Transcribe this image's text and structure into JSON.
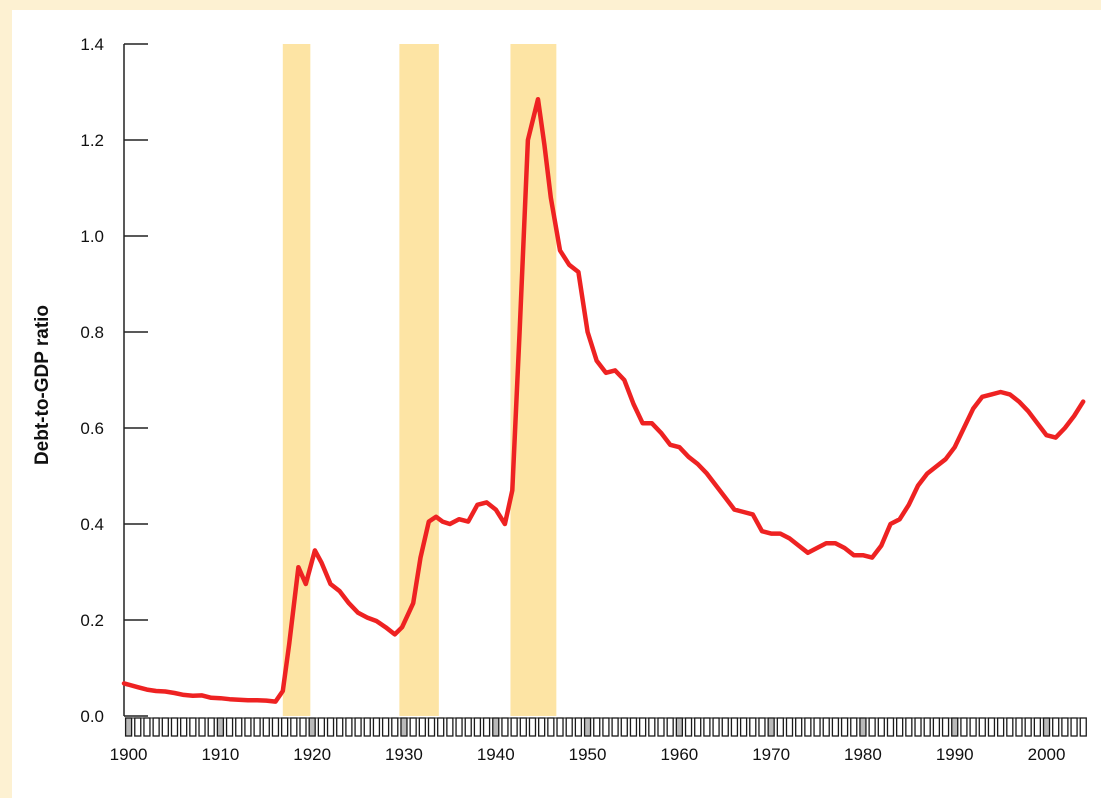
{
  "chart_data": {
    "type": "line",
    "title": "",
    "xlabel": "",
    "ylabel": "Debt-to-GDP ratio",
    "xlim": [
      1899.5,
      2004.3
    ],
    "ylim": [
      0,
      1.4
    ],
    "yticks": [
      0.0,
      0.2,
      0.4,
      0.6,
      0.8,
      1.0,
      1.2,
      1.4
    ],
    "ytick_labels": [
      "0.0",
      "0.2",
      "0.4",
      "0.6",
      "0.8",
      "1.0",
      "1.2",
      "1.4"
    ],
    "xticks": [
      1900,
      1910,
      1920,
      1930,
      1940,
      1950,
      1960,
      1970,
      1980,
      1990,
      2000
    ],
    "xtick_labels": [
      "1900",
      "1910",
      "1920",
      "1930",
      "1940",
      "1950",
      "1960",
      "1970",
      "1980",
      "1990",
      "2000"
    ],
    "line_color": "#ee2222",
    "band_color": "#fde4a4",
    "axis_color": "#222222",
    "grid": false,
    "shaded_periods": [
      {
        "start": 1916.8,
        "end": 1919.8
      },
      {
        "start": 1929.5,
        "end": 1933.8
      },
      {
        "start": 1941.6,
        "end": 1946.6
      }
    ],
    "series": [
      {
        "name": "",
        "x": [
          1899.5,
          1901,
          1902,
          1903,
          1904,
          1905,
          1906,
          1907,
          1908,
          1909,
          1910,
          1911,
          1912,
          1913,
          1914,
          1915,
          1916,
          1916.8,
          1917.5,
          1918.5,
          1919.3,
          1920.3,
          1921,
          1922,
          1923,
          1924,
          1925,
          1926,
          1927,
          1928,
          1929,
          1929.8,
          1931,
          1931.8,
          1932.7,
          1933.5,
          1934.2,
          1935,
          1936,
          1937,
          1938,
          1939,
          1940,
          1941,
          1941.8,
          1942.6,
          1943.5,
          1944.6,
          1945.3,
          1946,
          1947,
          1948,
          1949,
          1950,
          1951,
          1952,
          1953,
          1954,
          1955,
          1956,
          1957,
          1958,
          1959,
          1960,
          1961,
          1962,
          1963,
          1964,
          1965,
          1966,
          1967,
          1968,
          1969,
          1970,
          1971,
          1972,
          1973,
          1974,
          1975,
          1976,
          1977,
          1978,
          1979,
          1980,
          1981,
          1982,
          1983,
          1984,
          1985,
          1986,
          1987,
          1988,
          1989,
          1990,
          1991,
          1992,
          1993,
          1994,
          1995,
          1996,
          1997,
          1998,
          1999,
          2000,
          2001,
          2002,
          2003,
          2004
        ],
        "values": [
          0.068,
          0.06,
          0.055,
          0.052,
          0.051,
          0.048,
          0.044,
          0.042,
          0.043,
          0.038,
          0.037,
          0.035,
          0.034,
          0.033,
          0.033,
          0.032,
          0.03,
          0.052,
          0.15,
          0.31,
          0.275,
          0.345,
          0.32,
          0.275,
          0.26,
          0.235,
          0.215,
          0.205,
          0.198,
          0.185,
          0.17,
          0.185,
          0.235,
          0.33,
          0.405,
          0.415,
          0.405,
          0.4,
          0.41,
          0.405,
          0.44,
          0.445,
          0.43,
          0.4,
          0.47,
          0.8,
          1.2,
          1.285,
          1.19,
          1.08,
          0.97,
          0.94,
          0.925,
          0.8,
          0.74,
          0.715,
          0.72,
          0.7,
          0.65,
          0.61,
          0.61,
          0.59,
          0.565,
          0.56,
          0.54,
          0.525,
          0.505,
          0.48,
          0.455,
          0.43,
          0.425,
          0.42,
          0.385,
          0.38,
          0.38,
          0.37,
          0.355,
          0.34,
          0.35,
          0.36,
          0.36,
          0.35,
          0.335,
          0.335,
          0.33,
          0.355,
          0.4,
          0.41,
          0.44,
          0.48,
          0.505,
          0.52,
          0.535,
          0.56,
          0.6,
          0.64,
          0.665,
          0.67,
          0.675,
          0.67,
          0.655,
          0.635,
          0.61,
          0.585,
          0.58,
          0.6,
          0.625,
          0.655
        ]
      }
    ]
  }
}
